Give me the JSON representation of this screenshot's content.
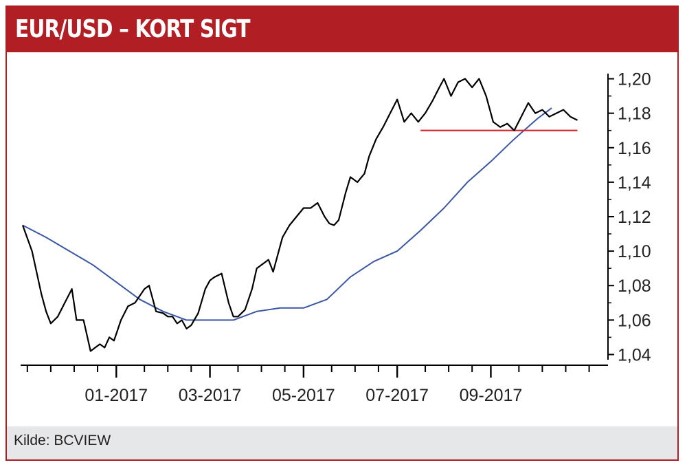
{
  "header": {
    "title": "EUR/USD – KORT SIGT"
  },
  "footer": {
    "source": "Kilde: BCVIEW"
  },
  "colors": {
    "brand": "#b11f24",
    "price": "#000000",
    "moving_average": "#3a57a4",
    "support": "#d8232a",
    "footer_bg": "#e6e7e8"
  },
  "chart_data": {
    "type": "line",
    "title": "EUR/USD – KORT SIGT",
    "xlabel": "",
    "ylabel": "",
    "x_tick_labels": [
      "01-2017",
      "03-2017",
      "05-2017",
      "07-2017",
      "09-2017"
    ],
    "x_tick_months": [
      2.0,
      4.0,
      6.0,
      8.0,
      10.0
    ],
    "x_range_months": [
      0.0,
      12.4
    ],
    "y_tick_labels": [
      "1,20",
      "1,18",
      "1,16",
      "1,14",
      "1,12",
      "1,10",
      "1,08",
      "1,06",
      "1,04"
    ],
    "y_ticks": [
      1.2,
      1.18,
      1.16,
      1.14,
      1.12,
      1.1,
      1.08,
      1.06,
      1.04
    ],
    "ylim": [
      1.035,
      1.205
    ],
    "y_axis_side": "right",
    "grid": false,
    "series": [
      {
        "name": "",
        "style": "price",
        "x": [
          0.0,
          0.2,
          0.4,
          0.5,
          0.6,
          0.75,
          0.9,
          1.05,
          1.15,
          1.3,
          1.45,
          1.55,
          1.65,
          1.75,
          1.85,
          1.95,
          2.1,
          2.25,
          2.4,
          2.5,
          2.6,
          2.7,
          2.85,
          3.0,
          3.1,
          3.2,
          3.3,
          3.4,
          3.5,
          3.6,
          3.75,
          3.9,
          4.0,
          4.1,
          4.25,
          4.4,
          4.5,
          4.6,
          4.75,
          4.9,
          5.0,
          5.15,
          5.25,
          5.35,
          5.45,
          5.55,
          5.7,
          5.85,
          6.0,
          6.15,
          6.3,
          6.45,
          6.55,
          6.65,
          6.75,
          6.9,
          7.0,
          7.15,
          7.3,
          7.4,
          7.55,
          7.7,
          7.85,
          8.0,
          8.15,
          8.3,
          8.45,
          8.6,
          8.75,
          8.9,
          9.0,
          9.15,
          9.3,
          9.45,
          9.6,
          9.75,
          9.9,
          10.05,
          10.2,
          10.35,
          10.5,
          10.65,
          10.8,
          10.95,
          11.1,
          11.25,
          11.4,
          11.55,
          11.7,
          11.85
        ],
        "y": [
          1.115,
          1.1,
          1.075,
          1.065,
          1.058,
          1.062,
          1.07,
          1.078,
          1.06,
          1.06,
          1.042,
          1.044,
          1.046,
          1.044,
          1.05,
          1.048,
          1.06,
          1.068,
          1.07,
          1.074,
          1.078,
          1.08,
          1.065,
          1.064,
          1.062,
          1.062,
          1.058,
          1.06,
          1.055,
          1.057,
          1.064,
          1.078,
          1.083,
          1.085,
          1.087,
          1.07,
          1.062,
          1.062,
          1.066,
          1.078,
          1.09,
          1.093,
          1.095,
          1.088,
          1.098,
          1.108,
          1.115,
          1.12,
          1.125,
          1.125,
          1.128,
          1.12,
          1.116,
          1.115,
          1.118,
          1.134,
          1.143,
          1.14,
          1.145,
          1.155,
          1.165,
          1.172,
          1.18,
          1.188,
          1.175,
          1.18,
          1.175,
          1.18,
          1.187,
          1.195,
          1.2,
          1.19,
          1.198,
          1.2,
          1.195,
          1.2,
          1.19,
          1.175,
          1.172,
          1.174,
          1.17,
          1.178,
          1.186,
          1.18,
          1.182,
          1.178,
          1.18,
          1.182,
          1.178,
          1.176
        ]
      },
      {
        "name": "",
        "style": "moving-average",
        "x": [
          0.0,
          0.5,
          1.0,
          1.5,
          2.0,
          2.5,
          3.0,
          3.5,
          4.0,
          4.5,
          5.0,
          5.5,
          6.0,
          6.5,
          7.0,
          7.5,
          8.0,
          8.5,
          9.0,
          9.5,
          10.0,
          10.5,
          11.0,
          11.3
        ],
        "y": [
          1.115,
          1.108,
          1.1,
          1.092,
          1.082,
          1.072,
          1.065,
          1.06,
          1.06,
          1.06,
          1.065,
          1.067,
          1.067,
          1.072,
          1.085,
          1.094,
          1.1,
          1.112,
          1.125,
          1.14,
          1.152,
          1.165,
          1.177,
          1.183
        ]
      },
      {
        "name": "",
        "style": "support",
        "x": [
          8.5,
          11.85
        ],
        "y": [
          1.17,
          1.17
        ]
      }
    ]
  }
}
